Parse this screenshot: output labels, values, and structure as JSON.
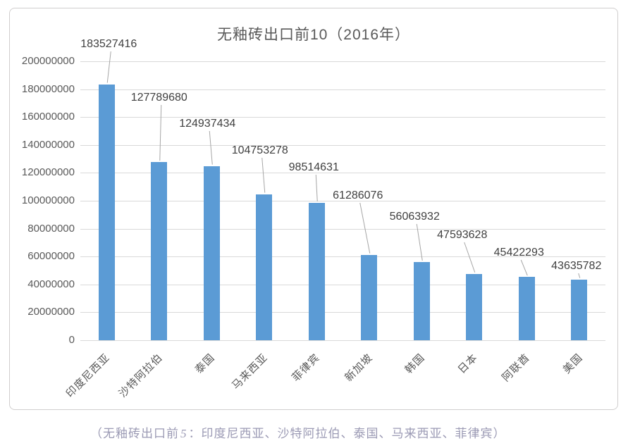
{
  "chart": {
    "colors": {
      "bar": "#5b9bd5",
      "gridline": "#d9d9d9",
      "leader_line": "#a6a6a6",
      "border": "#d0cece",
      "title_text": "#595959",
      "axis_text": "#595959",
      "data_label_text": "#404040",
      "caption_text": "#9b9ab4"
    }
  },
  "chart_data": {
    "type": "bar",
    "title": "无釉砖出口前10（2016年）",
    "categories": [
      "印度尼西亚",
      "沙特阿拉伯",
      "泰国",
      "马来西亚",
      "菲律宾",
      "新加坡",
      "韩国",
      "日本",
      "阿联酋",
      "美国"
    ],
    "values": [
      183527416,
      127789680,
      124937434,
      104753278,
      98514631,
      61286076,
      56063932,
      47593628,
      45422293,
      43635782
    ],
    "data_labels": [
      "183527416",
      "127789680",
      "124937434",
      "104753278",
      "98514631",
      "61286076",
      "56063932",
      "47593628",
      "45422293",
      "43635782"
    ],
    "xlabel": "",
    "ylabel": "",
    "ylim": [
      0,
      200000000
    ],
    "yticks": [
      0,
      20000000,
      40000000,
      60000000,
      80000000,
      100000000,
      120000000,
      140000000,
      160000000,
      180000000,
      200000000
    ],
    "ytick_labels": [
      "0",
      "20000000",
      "40000000",
      "60000000",
      "80000000",
      "100000000",
      "120000000",
      "140000000",
      "160000000",
      "180000000",
      "200000000"
    ],
    "grid": true,
    "legend": false,
    "data_labels_with_leader_lines": true,
    "category_label_rotation_deg": 45
  },
  "caption": {
    "prefix": "（无釉砖出口前",
    "number": "5",
    "suffix": "：印度尼西亚、沙特阿拉伯、泰国、马来西亚、菲律宾）"
  }
}
